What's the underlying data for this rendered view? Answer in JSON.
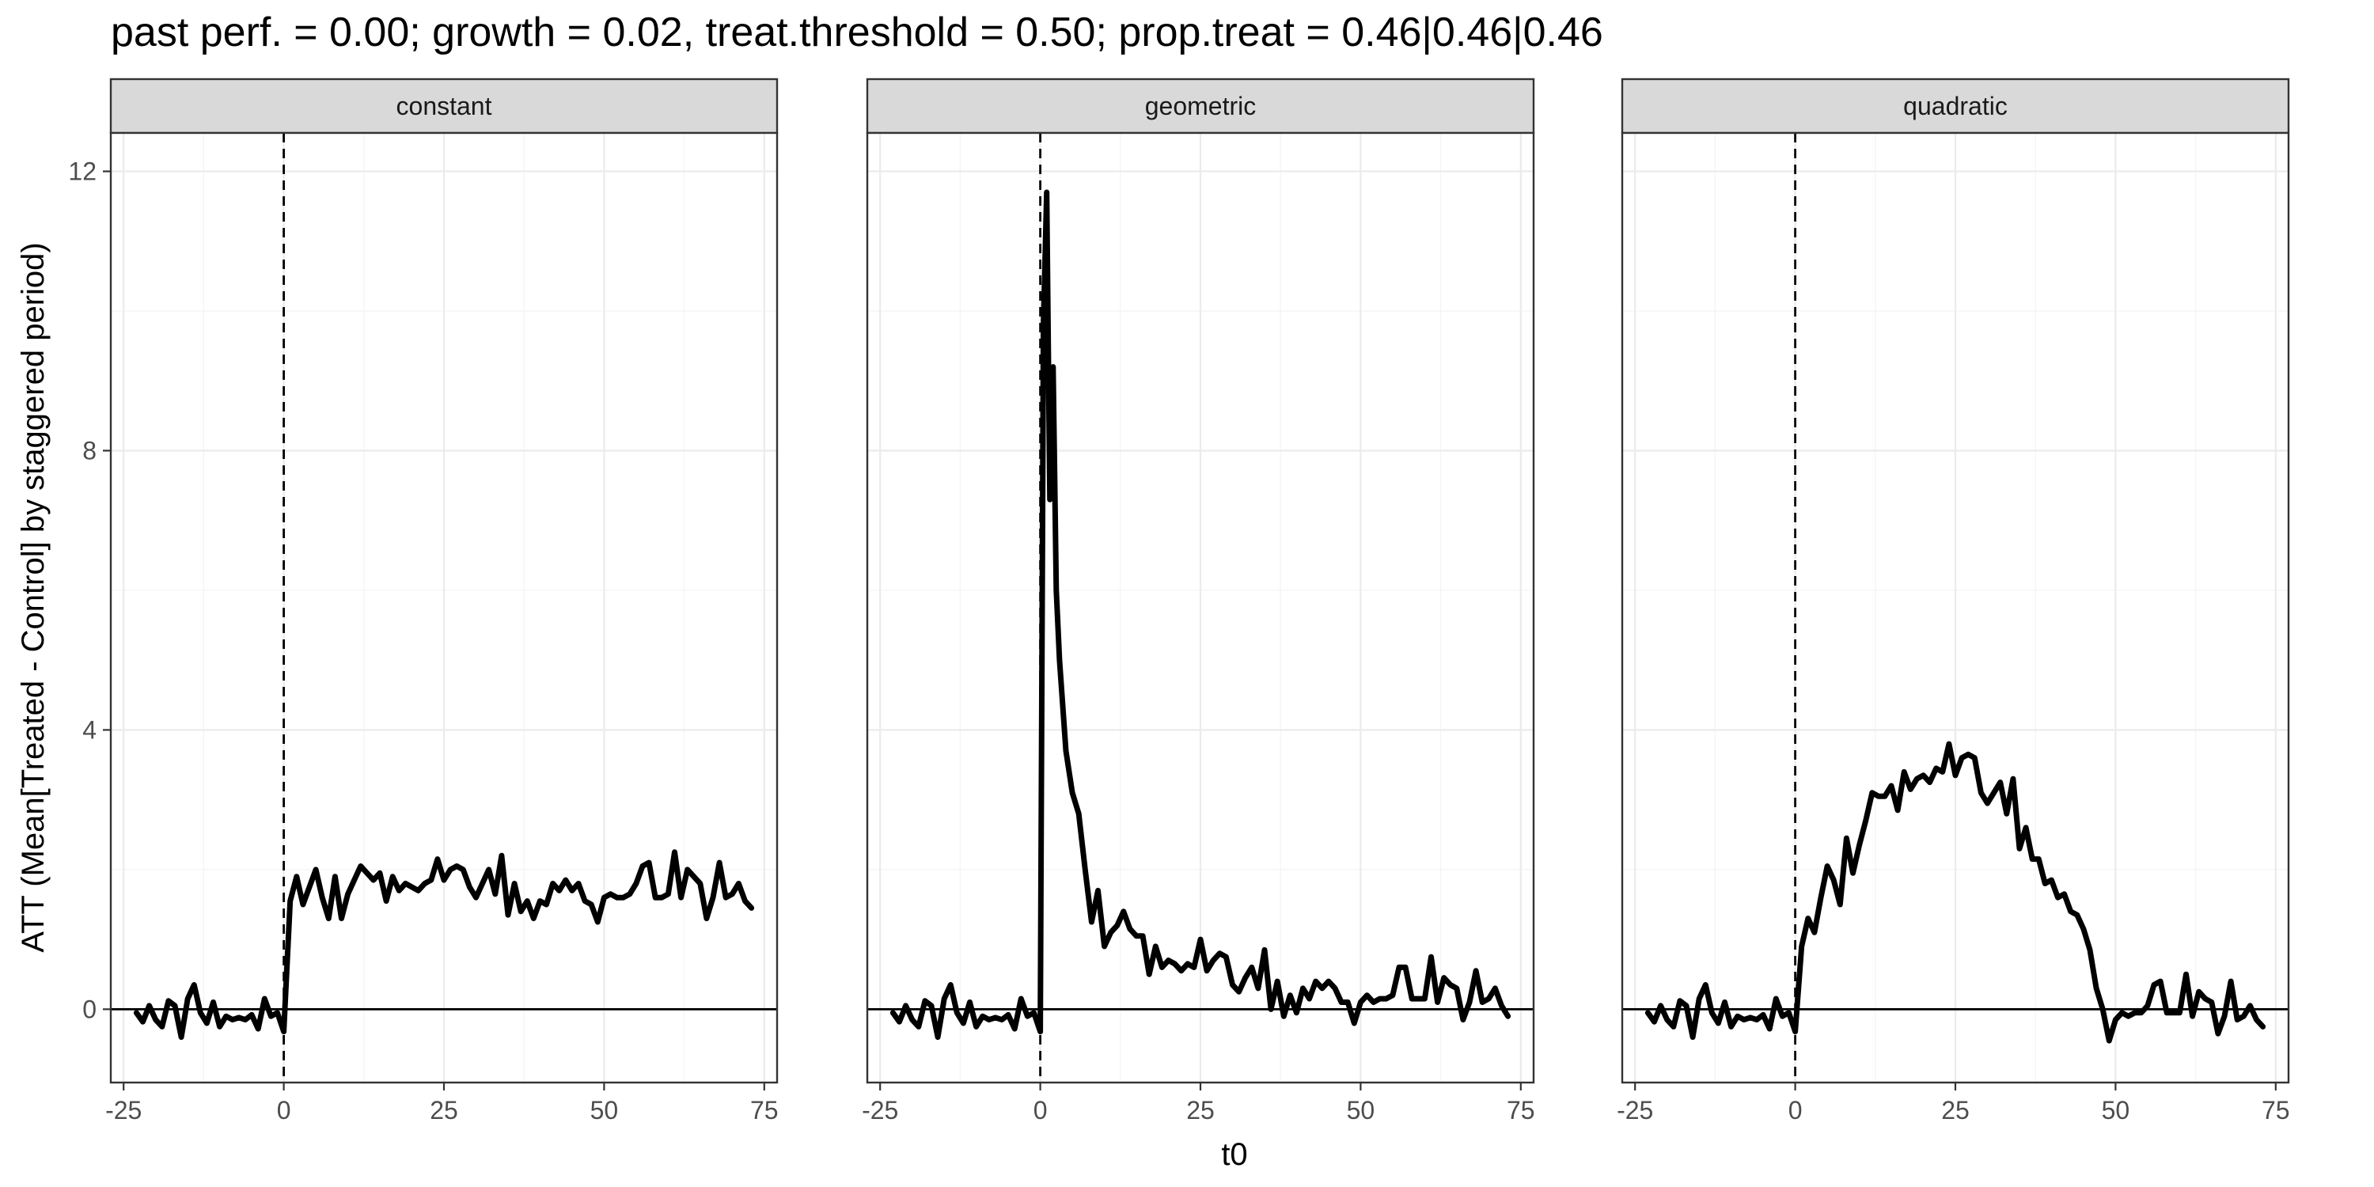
{
  "chart_data": {
    "type": "line",
    "title": "past perf. = 0.00; growth = 0.02,  treat.threshold = 0.50;  prop.treat = 0.46|0.46|0.46",
    "xlabel": "t0",
    "ylabel": "ATT (Mean[Treated - Control] by staggered period)",
    "xlim": [
      -27,
      77
    ],
    "ylim": [
      -1.05,
      12.55
    ],
    "x_ticks": [
      -25,
      0,
      25,
      50,
      75
    ],
    "y_ticks": [
      0,
      4,
      8,
      12
    ],
    "x_tick_labels": [
      "-25",
      "0",
      "25",
      "50",
      "75"
    ],
    "y_tick_labels": [
      "0",
      "4",
      "8",
      "12"
    ],
    "grid": true,
    "reference_lines": {
      "hline_y": 0,
      "vline_x": 0
    },
    "line_color": "#000000",
    "panels": [
      {
        "name": "constant",
        "x": [
          -23,
          -22,
          -21,
          -20,
          -19,
          -18,
          -17,
          -16,
          -15,
          -14,
          -13,
          -12,
          -11,
          -10,
          -9,
          -8,
          -7,
          -6,
          -5,
          -4,
          -3,
          -2,
          -1,
          0,
          1,
          2,
          3,
          4,
          5,
          6,
          7,
          8,
          9,
          10,
          11,
          12,
          13,
          14,
          15,
          16,
          17,
          18,
          19,
          20,
          21,
          22,
          23,
          24,
          25,
          26,
          27,
          28,
          29,
          30,
          31,
          32,
          33,
          34,
          35,
          36,
          37,
          38,
          39,
          40,
          41,
          42,
          43,
          44,
          45,
          46,
          47,
          48,
          49,
          50,
          51,
          52,
          53,
          54,
          55,
          56,
          57,
          58,
          59,
          60,
          61,
          62,
          63,
          64,
          65,
          66,
          67,
          68,
          69,
          70,
          71,
          72,
          73
        ],
        "y": [
          -0.05,
          -0.18,
          0.05,
          -0.15,
          -0.25,
          0.12,
          0.05,
          -0.4,
          0.15,
          0.35,
          -0.05,
          -0.2,
          0.1,
          -0.25,
          -0.1,
          -0.15,
          -0.12,
          -0.15,
          -0.08,
          -0.28,
          0.15,
          -0.1,
          -0.05,
          -0.32,
          1.55,
          1.9,
          1.5,
          1.75,
          2.0,
          1.6,
          1.3,
          1.9,
          1.3,
          1.65,
          1.85,
          2.05,
          1.95,
          1.85,
          1.95,
          1.55,
          1.9,
          1.7,
          1.8,
          1.75,
          1.7,
          1.8,
          1.85,
          2.15,
          1.85,
          2.0,
          2.05,
          2.0,
          1.75,
          1.6,
          1.8,
          2.0,
          1.65,
          2.2,
          1.35,
          1.8,
          1.4,
          1.55,
          1.3,
          1.55,
          1.5,
          1.8,
          1.7,
          1.85,
          1.7,
          1.8,
          1.55,
          1.5,
          1.25,
          1.6,
          1.65,
          1.6,
          1.6,
          1.65,
          1.8,
          2.05,
          2.1,
          1.6,
          1.6,
          1.65,
          2.25,
          1.6,
          2.0,
          1.9,
          1.8,
          1.3,
          1.6,
          2.1,
          1.6,
          1.65,
          1.8,
          1.55,
          1.45
        ]
      },
      {
        "name": "geometric",
        "x": [
          -23,
          -22,
          -21,
          -20,
          -19,
          -18,
          -17,
          -16,
          -15,
          -14,
          -13,
          -12,
          -11,
          -10,
          -9,
          -8,
          -7,
          -6,
          -5,
          -4,
          -3,
          -2,
          -1,
          0,
          0.5,
          1,
          1.5,
          2,
          2.5,
          3,
          4,
          5,
          6,
          7,
          8,
          9,
          10,
          11,
          12,
          13,
          14,
          15,
          16,
          17,
          18,
          19,
          20,
          21,
          22,
          23,
          24,
          25,
          26,
          27,
          28,
          29,
          30,
          31,
          32,
          33,
          34,
          35,
          36,
          37,
          38,
          39,
          40,
          41,
          42,
          43,
          44,
          45,
          46,
          47,
          48,
          49,
          50,
          51,
          52,
          53,
          54,
          55,
          56,
          57,
          58,
          59,
          60,
          61,
          62,
          63,
          64,
          65,
          66,
          67,
          68,
          69,
          70,
          71,
          72,
          73
        ],
        "y": [
          -0.05,
          -0.18,
          0.05,
          -0.15,
          -0.25,
          0.12,
          0.05,
          -0.4,
          0.15,
          0.35,
          -0.05,
          -0.2,
          0.1,
          -0.25,
          -0.1,
          -0.15,
          -0.12,
          -0.15,
          -0.08,
          -0.28,
          0.15,
          -0.1,
          -0.05,
          -0.32,
          9.8,
          11.7,
          7.3,
          9.2,
          6.0,
          5.0,
          3.7,
          3.1,
          2.8,
          2.0,
          1.25,
          1.7,
          0.9,
          1.1,
          1.2,
          1.4,
          1.15,
          1.05,
          1.05,
          0.5,
          0.9,
          0.6,
          0.7,
          0.65,
          0.55,
          0.65,
          0.6,
          1.0,
          0.55,
          0.7,
          0.8,
          0.75,
          0.35,
          0.25,
          0.45,
          0.6,
          0.3,
          0.85,
          0.0,
          0.4,
          -0.1,
          0.2,
          -0.05,
          0.3,
          0.15,
          0.4,
          0.3,
          0.4,
          0.3,
          0.1,
          0.1,
          -0.2,
          0.1,
          0.2,
          0.1,
          0.15,
          0.15,
          0.2,
          0.6,
          0.6,
          0.15,
          0.15,
          0.15,
          0.75,
          0.1,
          0.45,
          0.35,
          0.3,
          -0.15,
          0.1,
          0.55,
          0.1,
          0.15,
          0.3,
          0.05,
          -0.1
        ]
      },
      {
        "name": "quadratic",
        "x": [
          -23,
          -22,
          -21,
          -20,
          -19,
          -18,
          -17,
          -16,
          -15,
          -14,
          -13,
          -12,
          -11,
          -10,
          -9,
          -8,
          -7,
          -6,
          -5,
          -4,
          -3,
          -2,
          -1,
          0,
          1,
          2,
          3,
          4,
          5,
          6,
          7,
          8,
          9,
          10,
          11,
          12,
          13,
          14,
          15,
          16,
          17,
          18,
          19,
          20,
          21,
          22,
          23,
          24,
          25,
          26,
          27,
          28,
          29,
          30,
          31,
          32,
          33,
          34,
          35,
          36,
          37,
          38,
          39,
          40,
          41,
          42,
          43,
          44,
          45,
          46,
          47,
          48,
          49,
          50,
          51,
          52,
          53,
          54,
          55,
          56,
          57,
          58,
          59,
          60,
          61,
          62,
          63,
          64,
          65,
          66,
          67,
          68,
          69,
          70,
          71,
          72,
          73
        ],
        "y": [
          -0.05,
          -0.18,
          0.05,
          -0.15,
          -0.25,
          0.12,
          0.05,
          -0.4,
          0.15,
          0.35,
          -0.05,
          -0.2,
          0.1,
          -0.25,
          -0.1,
          -0.15,
          -0.12,
          -0.15,
          -0.08,
          -0.28,
          0.15,
          -0.1,
          -0.05,
          -0.32,
          0.9,
          1.3,
          1.1,
          1.6,
          2.05,
          1.85,
          1.5,
          2.45,
          1.95,
          2.35,
          2.7,
          3.1,
          3.05,
          3.05,
          3.2,
          2.85,
          3.4,
          3.15,
          3.3,
          3.35,
          3.25,
          3.45,
          3.4,
          3.8,
          3.35,
          3.6,
          3.65,
          3.6,
          3.1,
          2.95,
          3.1,
          3.25,
          2.8,
          3.3,
          2.3,
          2.6,
          2.15,
          2.15,
          1.8,
          1.85,
          1.6,
          1.65,
          1.4,
          1.35,
          1.15,
          0.85,
          0.3,
          0.0,
          -0.45,
          -0.15,
          -0.05,
          -0.1,
          -0.05,
          -0.05,
          0.05,
          0.35,
          0.4,
          -0.05,
          -0.05,
          -0.05,
          0.5,
          -0.1,
          0.25,
          0.15,
          0.1,
          -0.35,
          -0.1,
          0.4,
          -0.15,
          -0.1,
          0.05,
          -0.15,
          -0.25
        ]
      }
    ]
  }
}
